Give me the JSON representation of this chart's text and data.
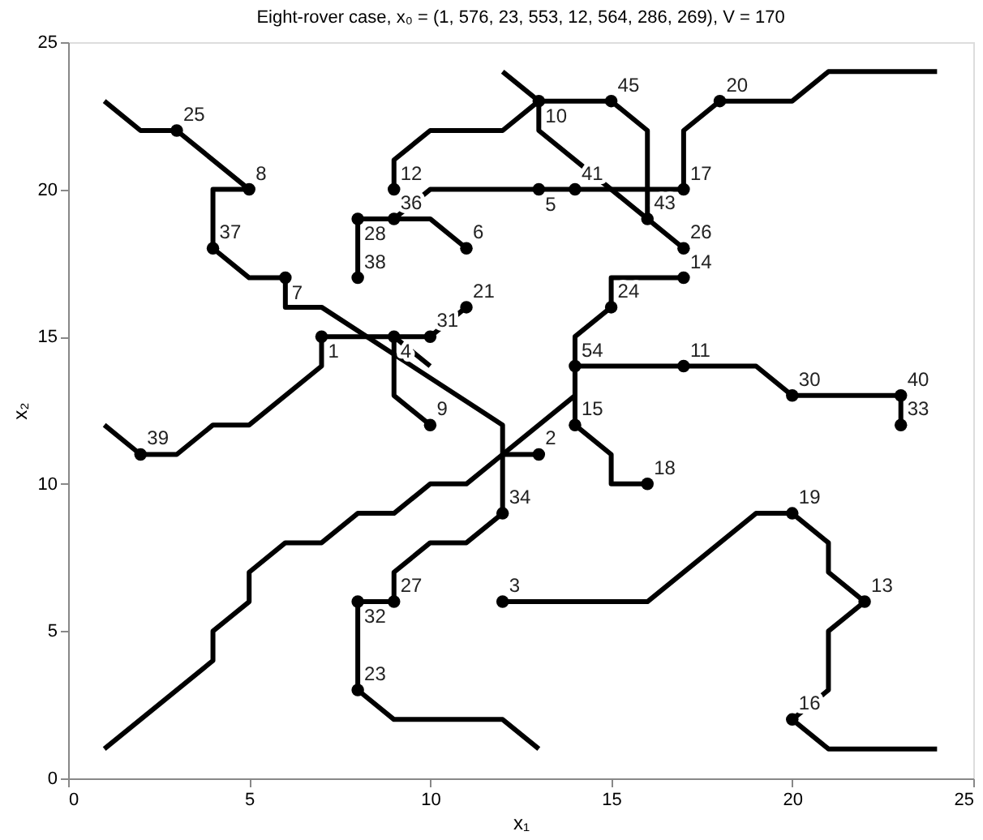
{
  "chart_data": {
    "type": "line",
    "title": "Eight-rover case, x₀ = (1, 576, 23, 553, 12, 564, 286, 269), V = 170",
    "xlabel": "x₁",
    "ylabel": "x₂",
    "xlim": [
      0,
      25
    ],
    "ylim": [
      0,
      25
    ],
    "xticks": [
      0,
      5,
      10,
      15,
      20,
      25
    ],
    "yticks": [
      0,
      5,
      10,
      15,
      20,
      25
    ],
    "line_style": "solid",
    "series": [
      {
        "color": "#000000",
        "x": [
          1,
          2,
          3,
          5,
          4,
          4,
          5,
          6,
          6,
          7,
          12,
          12,
          11,
          10,
          9,
          9
        ],
        "values": [
          23,
          22,
          22,
          20,
          20,
          18,
          17,
          17,
          16,
          16,
          12,
          9,
          8,
          8,
          7,
          6
        ]
      },
      {
        "color": "#000000",
        "x": [
          1,
          4,
          4,
          5,
          5,
          6,
          7,
          8,
          9,
          10,
          11,
          12,
          14,
          14,
          14,
          15,
          15,
          17
        ],
        "values": [
          1,
          4,
          5,
          6,
          7,
          8,
          8,
          9,
          9,
          10,
          10,
          11,
          13,
          14,
          15,
          16,
          17,
          17
        ]
      },
      {
        "color": "#000000",
        "x": [
          12,
          13
        ],
        "values": [
          11,
          11
        ]
      },
      {
        "color": "#000000",
        "x": [
          1,
          2,
          3,
          4,
          5,
          7,
          7,
          9,
          10,
          11
        ],
        "values": [
          12,
          11,
          11,
          12,
          12,
          14,
          15,
          15,
          15,
          16
        ]
      },
      {
        "color": "#000000",
        "x": [
          10,
          9,
          9,
          10,
          10
        ],
        "values": [
          12,
          13,
          15,
          14,
          14
        ]
      },
      {
        "color": "#000000",
        "x": [
          9,
          9,
          10,
          12,
          13,
          15,
          16,
          16,
          17
        ],
        "values": [
          20,
          21,
          22,
          22,
          23,
          23,
          22,
          19,
          18
        ]
      },
      {
        "color": "#000000",
        "x": [
          12,
          13,
          13,
          15,
          16
        ],
        "values": [
          24,
          23,
          22,
          20,
          19
        ]
      },
      {
        "color": "#000000",
        "x": [
          9,
          10,
          13,
          14,
          17,
          17,
          18,
          20,
          21,
          24
        ],
        "values": [
          19,
          20,
          20,
          20,
          20,
          22,
          23,
          23,
          24,
          24
        ]
      },
      {
        "color": "#000000",
        "x": [
          8,
          8,
          9,
          10,
          11
        ],
        "values": [
          17,
          19,
          19,
          19,
          18
        ]
      },
      {
        "color": "#000000",
        "x": [
          14,
          17,
          19,
          20,
          23,
          23
        ],
        "values": [
          14,
          14,
          14,
          13,
          13,
          12
        ]
      },
      {
        "color": "#000000",
        "x": [
          14,
          14,
          15,
          15,
          16
        ],
        "values": [
          14,
          12,
          11,
          10,
          10
        ]
      },
      {
        "color": "#000000",
        "x": [
          12,
          16,
          19,
          20,
          21,
          21,
          22,
          21,
          21,
          20,
          21,
          24
        ],
        "values": [
          6,
          6,
          9,
          9,
          8,
          7,
          6,
          5,
          3,
          2,
          1,
          1
        ]
      },
      {
        "color": "#000000",
        "x": [
          9,
          8,
          8,
          9,
          12,
          13
        ],
        "values": [
          6,
          6,
          3,
          2,
          2,
          1
        ]
      },
      {
        "type": "scatter",
        "marker": "circle",
        "color": "#000000",
        "x": [
          3,
          5,
          4,
          6,
          8,
          8,
          9,
          9,
          11,
          11,
          7,
          9,
          10,
          10,
          2,
          13,
          12,
          8,
          9,
          12,
          8,
          13,
          15,
          18,
          13,
          14,
          17,
          16,
          17,
          17,
          15,
          14,
          17,
          20,
          23,
          23,
          14,
          16,
          20,
          22,
          20
        ],
        "values": [
          22,
          20,
          18,
          17,
          17,
          19,
          19,
          20,
          18,
          16,
          15,
          15,
          15,
          12,
          11,
          11,
          9,
          6,
          6,
          6,
          3,
          23,
          23,
          23,
          20,
          20,
          20,
          19,
          18,
          17,
          16,
          14,
          14,
          13,
          13,
          12,
          12,
          10,
          9,
          6,
          2
        ]
      }
    ],
    "annotations": [
      {
        "text": "25",
        "x": 3,
        "y": 22
      },
      {
        "text": "8",
        "x": 5,
        "y": 20
      },
      {
        "text": "37",
        "x": 4,
        "y": 18
      },
      {
        "text": "7",
        "x": 6,
        "y": 17
      },
      {
        "text": "38",
        "x": 8,
        "y": 17
      },
      {
        "text": "28",
        "x": 8,
        "y": 19
      },
      {
        "text": "36",
        "x": 9,
        "y": 19
      },
      {
        "text": "12",
        "x": 9,
        "y": 20
      },
      {
        "text": "6",
        "x": 11,
        "y": 18
      },
      {
        "text": "21",
        "x": 11,
        "y": 16
      },
      {
        "text": "1",
        "x": 7,
        "y": 15
      },
      {
        "text": "4",
        "x": 9,
        "y": 15
      },
      {
        "text": "31",
        "x": 10,
        "y": 15
      },
      {
        "text": "9",
        "x": 10,
        "y": 12
      },
      {
        "text": "39",
        "x": 2,
        "y": 11
      },
      {
        "text": "2",
        "x": 13,
        "y": 11
      },
      {
        "text": "34",
        "x": 12,
        "y": 9
      },
      {
        "text": "32",
        "x": 8,
        "y": 6
      },
      {
        "text": "27",
        "x": 9,
        "y": 6
      },
      {
        "text": "3",
        "x": 12,
        "y": 6
      },
      {
        "text": "23",
        "x": 8,
        "y": 3
      },
      {
        "text": "10",
        "x": 13,
        "y": 23
      },
      {
        "text": "45",
        "x": 15,
        "y": 23
      },
      {
        "text": "20",
        "x": 18,
        "y": 23
      },
      {
        "text": "5",
        "x": 13,
        "y": 20
      },
      {
        "text": "41",
        "x": 14,
        "y": 20
      },
      {
        "text": "17",
        "x": 17,
        "y": 20
      },
      {
        "text": "43",
        "x": 16,
        "y": 19
      },
      {
        "text": "26",
        "x": 17,
        "y": 18
      },
      {
        "text": "14",
        "x": 17,
        "y": 17
      },
      {
        "text": "24",
        "x": 15,
        "y": 16
      },
      {
        "text": "54",
        "x": 14,
        "y": 14
      },
      {
        "text": "11",
        "x": 17,
        "y": 14
      },
      {
        "text": "30",
        "x": 20,
        "y": 13
      },
      {
        "text": "40",
        "x": 23,
        "y": 13
      },
      {
        "text": "33",
        "x": 23,
        "y": 12
      },
      {
        "text": "15",
        "x": 14,
        "y": 12
      },
      {
        "text": "18",
        "x": 16,
        "y": 10
      },
      {
        "text": "19",
        "x": 20,
        "y": 9
      },
      {
        "text": "13",
        "x": 22,
        "y": 6
      },
      {
        "text": "16",
        "x": 20,
        "y": 2
      }
    ]
  }
}
